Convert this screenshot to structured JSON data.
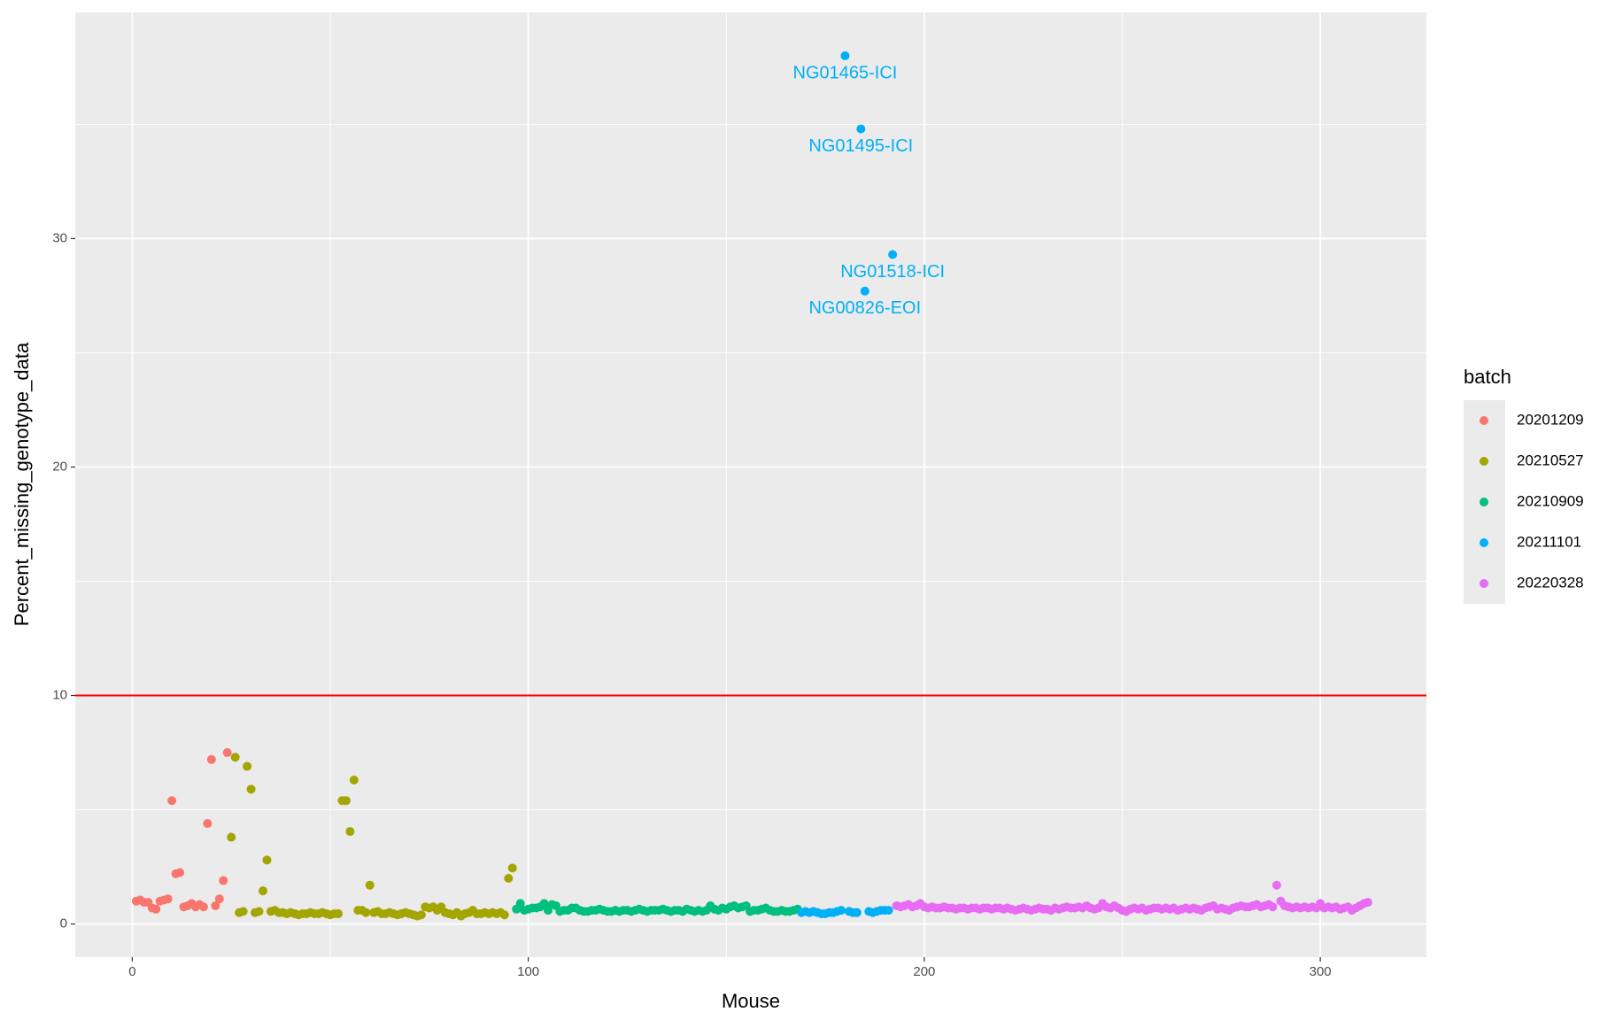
{
  "chart_data": {
    "type": "scatter",
    "x_label": "Mouse",
    "y_label": "Percent_missing_genotype_data",
    "legend_title": "batch",
    "legend_position": "right",
    "xlim": [
      -14.4,
      326.8
    ],
    "ylim": [
      -1.45,
      39.9
    ],
    "xticks": [
      0,
      100,
      200,
      300
    ],
    "yticks": [
      0,
      10,
      20,
      30
    ],
    "x_minor_grid": [
      50,
      150,
      250
    ],
    "y_minor_grid": [
      5,
      15,
      25,
      35
    ],
    "grid": true,
    "panel_color": "#ebebeb",
    "hline": {
      "value": 10,
      "color": "#ff0000"
    },
    "series": [
      {
        "name": "20201209",
        "color": "#F8766D",
        "x": [
          1,
          2,
          3,
          4,
          5,
          6,
          7,
          8,
          9,
          10,
          11,
          12,
          13,
          14,
          15,
          16,
          17,
          18,
          19,
          20,
          21,
          22,
          23,
          24
        ],
        "values": [
          1.0,
          1.05,
          0.95,
          0.95,
          0.7,
          0.65,
          1.0,
          1.05,
          1.1,
          5.4,
          2.2,
          2.25,
          0.75,
          0.8,
          0.9,
          0.75,
          0.85,
          0.75,
          4.4,
          7.2,
          0.8,
          1.1,
          1.9,
          7.5
        ]
      },
      {
        "name": "20210527",
        "color": "#A3A500",
        "x": [
          25,
          26,
          27,
          28,
          29,
          30,
          31,
          32,
          33,
          34,
          35,
          36,
          37,
          38,
          39,
          40,
          41,
          42,
          43,
          44,
          45,
          46,
          47,
          48,
          49,
          50,
          51,
          52,
          53,
          54,
          55,
          56,
          57,
          58,
          59,
          60,
          61,
          62,
          63,
          64,
          65,
          66,
          67,
          68,
          69,
          70,
          71,
          72,
          73,
          74,
          75,
          76,
          77,
          78,
          79,
          80,
          81,
          82,
          83,
          84,
          85,
          86,
          87,
          88,
          89,
          90,
          91,
          92,
          93,
          94,
          95,
          96
        ],
        "values": [
          3.8,
          7.3,
          0.5,
          0.55,
          6.9,
          5.9,
          0.5,
          0.55,
          1.45,
          2.8,
          0.55,
          0.6,
          0.5,
          0.5,
          0.45,
          0.5,
          0.45,
          0.4,
          0.45,
          0.45,
          0.5,
          0.45,
          0.45,
          0.5,
          0.45,
          0.4,
          0.45,
          0.45,
          5.4,
          5.4,
          4.05,
          6.3,
          0.6,
          0.6,
          0.5,
          1.7,
          0.5,
          0.55,
          0.45,
          0.45,
          0.5,
          0.45,
          0.4,
          0.45,
          0.5,
          0.45,
          0.4,
          0.35,
          0.4,
          0.75,
          0.7,
          0.75,
          0.6,
          0.75,
          0.5,
          0.45,
          0.4,
          0.5,
          0.35,
          0.45,
          0.5,
          0.6,
          0.45,
          0.45,
          0.5,
          0.45,
          0.5,
          0.45,
          0.5,
          0.4,
          2.0,
          2.45
        ]
      },
      {
        "name": "20210909",
        "color": "#00BF7D",
        "x": [
          97,
          98,
          99,
          100,
          101,
          102,
          103,
          104,
          105,
          106,
          107,
          108,
          109,
          110,
          111,
          112,
          113,
          114,
          115,
          116,
          117,
          118,
          119,
          120,
          121,
          122,
          123,
          124,
          125,
          126,
          127,
          128,
          129,
          130,
          131,
          132,
          133,
          134,
          135,
          136,
          137,
          138,
          139,
          140,
          141,
          142,
          143,
          144,
          145,
          146,
          147,
          148,
          149,
          150,
          151,
          152,
          153,
          154,
          155,
          156,
          157,
          158,
          159,
          160,
          161,
          162,
          163,
          164,
          165,
          166,
          167,
          168
        ],
        "values": [
          0.65,
          0.9,
          0.6,
          0.65,
          0.7,
          0.7,
          0.75,
          0.9,
          0.6,
          0.85,
          0.8,
          0.55,
          0.6,
          0.6,
          0.7,
          0.7,
          0.6,
          0.55,
          0.55,
          0.6,
          0.6,
          0.65,
          0.6,
          0.55,
          0.55,
          0.6,
          0.55,
          0.6,
          0.6,
          0.55,
          0.6,
          0.65,
          0.6,
          0.55,
          0.6,
          0.6,
          0.6,
          0.65,
          0.6,
          0.55,
          0.6,
          0.6,
          0.55,
          0.65,
          0.6,
          0.55,
          0.6,
          0.55,
          0.6,
          0.8,
          0.65,
          0.6,
          0.7,
          0.65,
          0.75,
          0.8,
          0.7,
          0.75,
          0.8,
          0.55,
          0.6,
          0.6,
          0.65,
          0.7,
          0.6,
          0.55,
          0.55,
          0.6,
          0.55,
          0.55,
          0.6,
          0.65
        ]
      },
      {
        "name": "20211101",
        "color": "#00B0F6",
        "x": [
          169,
          170,
          171,
          172,
          173,
          174,
          175,
          176,
          177,
          178,
          179,
          180,
          181,
          182,
          183,
          184,
          185,
          186,
          187,
          188,
          189,
          190,
          191,
          192
        ],
        "values": [
          0.5,
          0.55,
          0.5,
          0.55,
          0.5,
          0.45,
          0.45,
          0.5,
          0.5,
          0.55,
          0.6,
          38.0,
          0.55,
          0.5,
          0.5,
          34.8,
          27.7,
          0.55,
          0.5,
          0.55,
          0.6,
          0.6,
          0.6,
          29.3
        ]
      },
      {
        "name": "20220328",
        "color": "#E76BF3",
        "x": [
          193,
          194,
          195,
          196,
          197,
          198,
          199,
          200,
          201,
          202,
          203,
          204,
          205,
          206,
          207,
          208,
          209,
          210,
          211,
          212,
          213,
          214,
          215,
          216,
          217,
          218,
          219,
          220,
          221,
          222,
          223,
          224,
          225,
          226,
          227,
          228,
          229,
          230,
          231,
          232,
          233,
          234,
          235,
          236,
          237,
          238,
          239,
          240,
          241,
          242,
          243,
          244,
          245,
          246,
          247,
          248,
          249,
          250,
          251,
          252,
          253,
          254,
          255,
          256,
          257,
          258,
          259,
          260,
          261,
          262,
          263,
          264,
          265,
          266,
          267,
          268,
          269,
          270,
          271,
          272,
          273,
          274,
          275,
          276,
          277,
          278,
          279,
          280,
          281,
          282,
          283,
          284,
          285,
          286,
          287,
          288,
          289,
          290,
          291,
          292,
          293,
          294,
          295,
          296,
          297,
          298,
          299,
          300,
          301,
          302,
          303,
          304,
          305,
          306,
          307,
          308,
          309,
          310,
          311,
          312
        ],
        "values": [
          0.8,
          0.75,
          0.8,
          0.85,
          0.75,
          0.8,
          0.9,
          0.75,
          0.7,
          0.75,
          0.7,
          0.7,
          0.75,
          0.7,
          0.7,
          0.65,
          0.7,
          0.7,
          0.65,
          0.7,
          0.7,
          0.65,
          0.7,
          0.7,
          0.65,
          0.7,
          0.7,
          0.65,
          0.7,
          0.65,
          0.6,
          0.65,
          0.7,
          0.65,
          0.6,
          0.65,
          0.7,
          0.65,
          0.65,
          0.6,
          0.7,
          0.65,
          0.7,
          0.75,
          0.7,
          0.7,
          0.75,
          0.7,
          0.8,
          0.7,
          0.65,
          0.7,
          0.9,
          0.75,
          0.7,
          0.8,
          0.7,
          0.6,
          0.55,
          0.65,
          0.7,
          0.65,
          0.7,
          0.6,
          0.65,
          0.7,
          0.7,
          0.65,
          0.7,
          0.65,
          0.7,
          0.6,
          0.65,
          0.7,
          0.65,
          0.7,
          0.65,
          0.6,
          0.7,
          0.75,
          0.8,
          0.65,
          0.7,
          0.65,
          0.6,
          0.7,
          0.75,
          0.8,
          0.75,
          0.75,
          0.8,
          0.85,
          0.75,
          0.8,
          0.85,
          0.75,
          1.7,
          1.0,
          0.8,
          0.75,
          0.7,
          0.75,
          0.7,
          0.75,
          0.7,
          0.75,
          0.7,
          0.9,
          0.7,
          0.75,
          0.7,
          0.75,
          0.65,
          0.7,
          0.75,
          0.6,
          0.7,
          0.8,
          0.9,
          0.95
        ]
      }
    ],
    "annotations": [
      {
        "text": "NG01465-ICI",
        "x": 180,
        "y": 38.0,
        "color": "#00B0F6"
      },
      {
        "text": "NG01495-ICI",
        "x": 184,
        "y": 34.8,
        "color": "#00B0F6"
      },
      {
        "text": "NG01518-ICI",
        "x": 192,
        "y": 29.3,
        "color": "#00B0F6"
      },
      {
        "text": "NG00826-EOI",
        "x": 185,
        "y": 27.7,
        "color": "#00B0F6"
      }
    ]
  }
}
